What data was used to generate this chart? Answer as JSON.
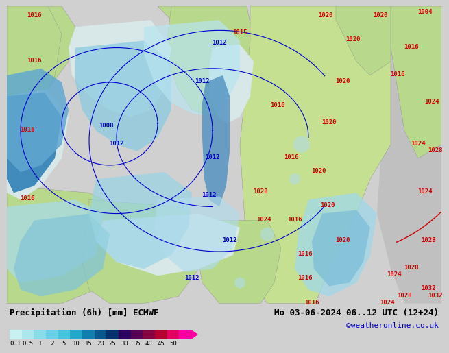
{
  "title_left": "Precipitation (6h) [mm] ECMWF",
  "title_right": "Mo 03-06-2024 06..12 UTC (12+24)",
  "credit": "©weatheronline.co.uk",
  "colorbar_levels": [
    "0.1",
    "0.5",
    "1",
    "2",
    "5",
    "10",
    "15",
    "20",
    "25",
    "30",
    "35",
    "40",
    "45",
    "50"
  ],
  "colorbar_colors": [
    "#c8f0f0",
    "#aae8ec",
    "#88dce8",
    "#66d0e4",
    "#44c4e0",
    "#22a8cc",
    "#1080b0",
    "#085890",
    "#043070",
    "#2a0060",
    "#580050",
    "#860040",
    "#b40030",
    "#e20060",
    "#ff00a0"
  ],
  "bg_color": "#d0d0d0",
  "land_green": "#b8d88c",
  "land_green2": "#c4e090",
  "sea_gray": "#c8c8c8",
  "sea_light": "#e0e8e8",
  "precip_light": "#c0ecf4",
  "precip_mid": "#80c8e0",
  "precip_dark": "#4098c8",
  "precip_blue": "#2060a0",
  "font_color": "#000000",
  "title_fontsize": 9,
  "credit_color": "#0000cc",
  "credit_fontsize": 8,
  "isobar_blue": "#0000cc",
  "isobar_red": "#cc0000"
}
